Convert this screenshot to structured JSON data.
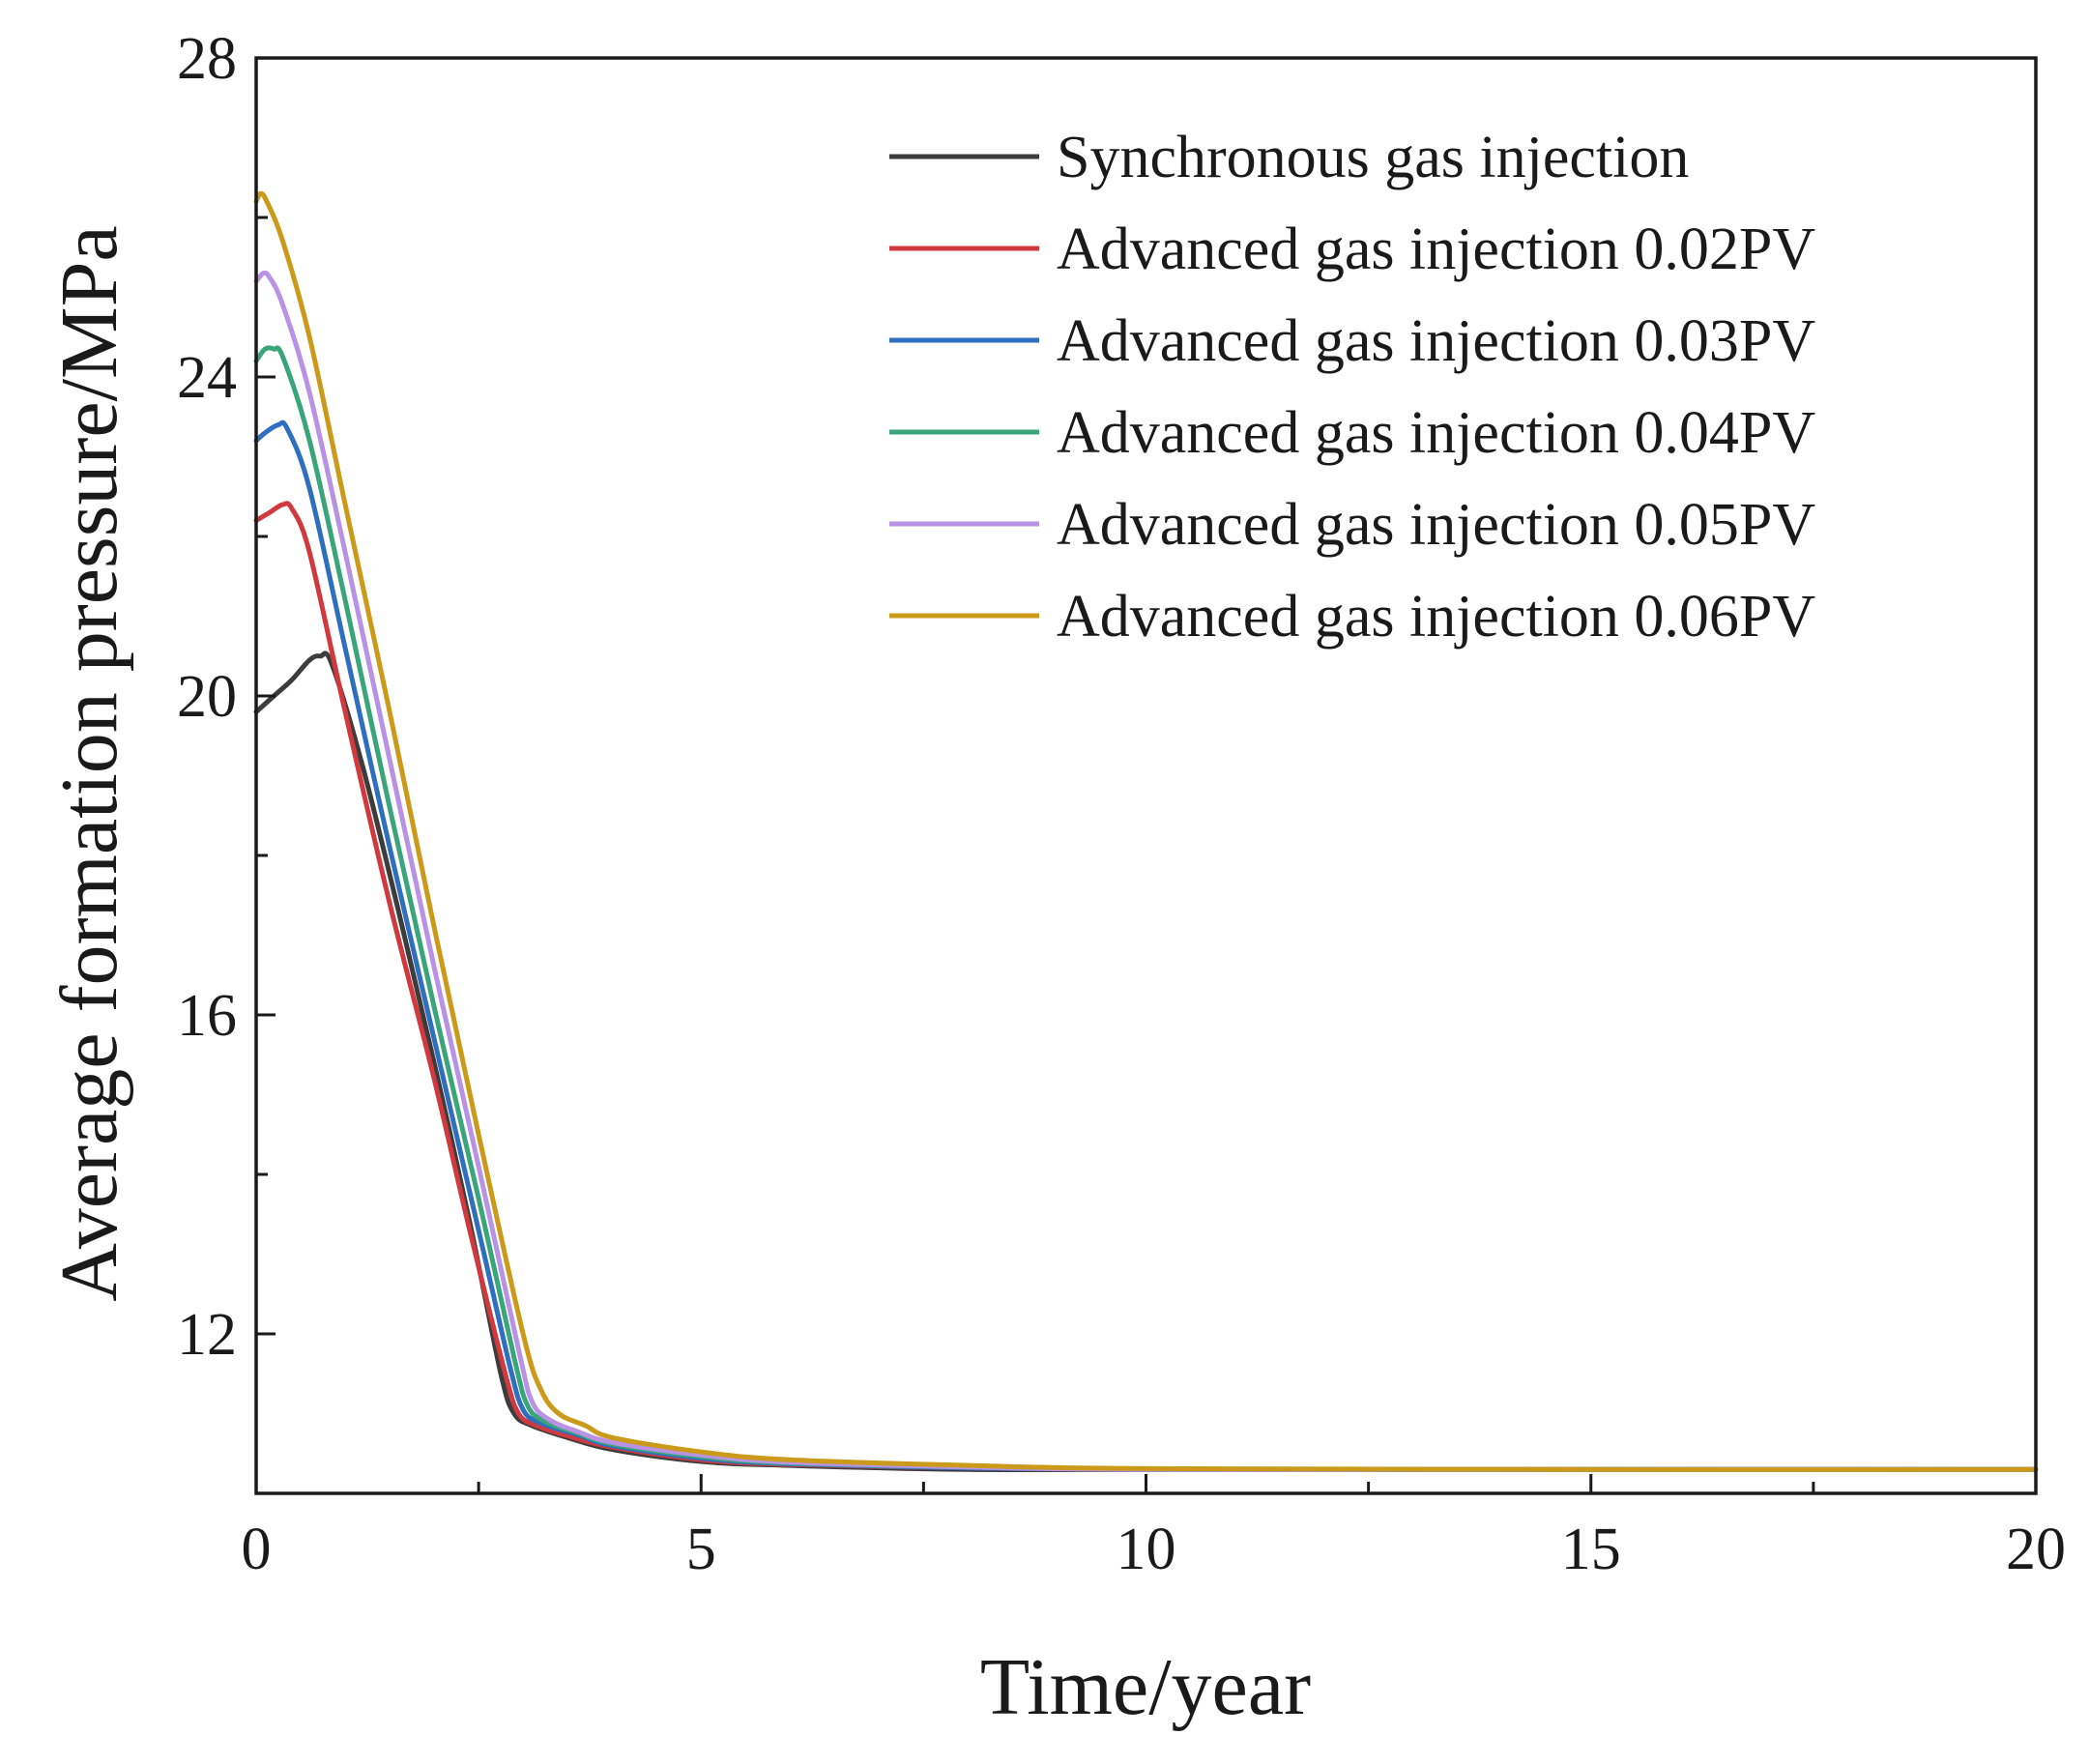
{
  "chart_data": {
    "type": "line",
    "title": "",
    "xlabel": "Time/year",
    "ylabel": "Average formation pressure/MPa",
    "xlim": [
      0,
      20
    ],
    "ylim": [
      10,
      28
    ],
    "xticks": [
      0,
      5,
      10,
      15,
      20
    ],
    "yticks": [
      12,
      16,
      20,
      24,
      28
    ],
    "grid": false,
    "legend_position": "top-right",
    "series": [
      {
        "name": "Synchronous gas injection",
        "color": "#3c3c3c",
        "x": [
          0,
          0.2,
          0.4,
          0.6,
          0.72,
          0.85,
          1.2,
          1.6,
          2.0,
          2.4,
          2.75,
          2.9,
          3.1,
          3.5,
          4,
          5,
          6,
          8,
          10,
          15,
          20
        ],
        "y": [
          19.8,
          20.0,
          20.2,
          20.45,
          20.5,
          20.4,
          19.1,
          17.3,
          15.4,
          13.4,
          11.5,
          11.0,
          10.85,
          10.7,
          10.55,
          10.4,
          10.35,
          10.3,
          10.3,
          10.3,
          10.3
        ]
      },
      {
        "name": "Advanced gas injection 0.02PV",
        "color": "#d0393e",
        "x": [
          0,
          0.15,
          0.3,
          0.4,
          0.6,
          1.0,
          1.5,
          2.0,
          2.4,
          2.8,
          2.95,
          3.15,
          3.5,
          4,
          5,
          6,
          8,
          10,
          15,
          20
        ],
        "y": [
          22.2,
          22.3,
          22.4,
          22.35,
          21.8,
          19.8,
          17.4,
          15.2,
          13.3,
          11.5,
          11.0,
          10.85,
          10.72,
          10.58,
          10.42,
          10.36,
          10.32,
          10.3,
          10.3,
          10.3
        ]
      },
      {
        "name": "Advanced gas injection 0.03PV",
        "color": "#2e6fc0",
        "x": [
          0,
          0.1,
          0.25,
          0.35,
          0.6,
          1.0,
          1.5,
          2.0,
          2.5,
          2.85,
          3.0,
          3.2,
          3.6,
          4,
          5,
          6,
          8,
          10,
          15,
          20
        ],
        "y": [
          23.2,
          23.3,
          23.4,
          23.35,
          22.6,
          20.6,
          18.1,
          15.7,
          13.3,
          11.6,
          11.05,
          10.88,
          10.74,
          10.6,
          10.44,
          10.37,
          10.32,
          10.3,
          10.3,
          10.3
        ]
      },
      {
        "name": "Advanced gas injection 0.04PV",
        "color": "#3aa57a",
        "x": [
          0,
          0.1,
          0.2,
          0.3,
          0.6,
          1.0,
          1.5,
          2.0,
          2.5,
          2.9,
          3.05,
          3.25,
          3.6,
          4,
          5,
          6,
          8,
          10,
          15,
          20
        ],
        "y": [
          24.2,
          24.35,
          24.35,
          24.25,
          23.2,
          21.2,
          18.6,
          16.1,
          13.7,
          11.7,
          11.1,
          10.9,
          10.76,
          10.62,
          10.46,
          10.38,
          10.33,
          10.3,
          10.3,
          10.3
        ]
      },
      {
        "name": "Advanced gas injection 0.05PV",
        "color": "#b992e6",
        "x": [
          0,
          0.08,
          0.15,
          0.3,
          0.6,
          1.0,
          1.5,
          2.0,
          2.5,
          2.95,
          3.1,
          3.3,
          3.6,
          4,
          5,
          6,
          8,
          10,
          15,
          20
        ],
        "y": [
          25.2,
          25.3,
          25.25,
          24.9,
          23.8,
          21.8,
          19.2,
          16.6,
          14.1,
          11.8,
          11.15,
          10.92,
          10.78,
          10.64,
          10.48,
          10.39,
          10.33,
          10.3,
          10.3,
          10.3
        ]
      },
      {
        "name": "Advanced gas injection 0.06PV",
        "color": "#cc9a1a",
        "x": [
          0,
          0.05,
          0.12,
          0.3,
          0.6,
          1.0,
          1.5,
          2.0,
          2.5,
          3.0,
          3.2,
          3.4,
          3.7,
          4,
          5,
          6,
          8,
          10,
          15,
          20
        ],
        "y": [
          26.2,
          26.3,
          26.2,
          25.7,
          24.5,
          22.4,
          19.8,
          17.1,
          14.5,
          12.0,
          11.3,
          11.0,
          10.85,
          10.7,
          10.52,
          10.42,
          10.35,
          10.31,
          10.3,
          10.3
        ]
      }
    ]
  }
}
